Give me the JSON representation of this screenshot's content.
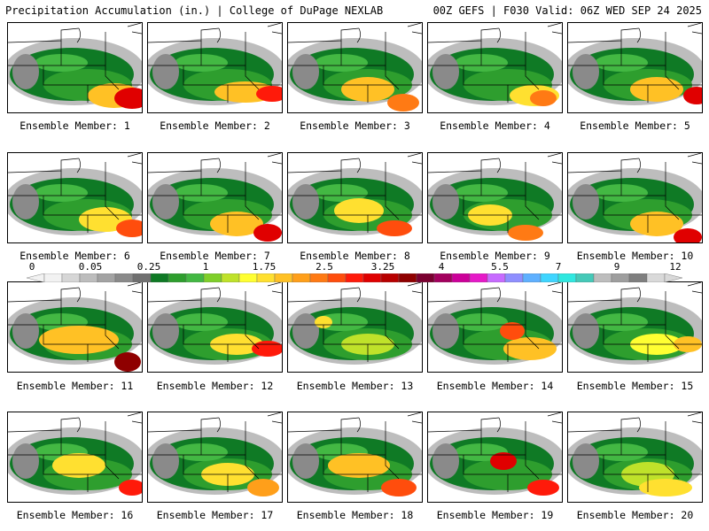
{
  "header": {
    "left_text": "Precipitation Accumulation (in.) | College of DuPage NEXLAB",
    "right_text": "00Z GEFS | F030 Valid: 06Z WED SEP 24 2025"
  },
  "colorbar": {
    "labels": [
      "0",
      "0.05",
      "0.25",
      "1",
      "1.75",
      "2.5",
      "3.25",
      "4",
      "5.5",
      "7",
      "9",
      "12"
    ],
    "colors": [
      "#f2f2f2",
      "#d6d6d6",
      "#bdbdbd",
      "#a3a3a3",
      "#8a8a8a",
      "#707070",
      "#0f7a25",
      "#2e9e2e",
      "#43b843",
      "#7fcf2a",
      "#bfe22a",
      "#ffff32",
      "#ffe030",
      "#ffc125",
      "#ff9f1a",
      "#ff7a14",
      "#ff4d0d",
      "#ff1a0a",
      "#e00000",
      "#b80000",
      "#8f0000",
      "#7a0030",
      "#a3005e",
      "#cc0099",
      "#e619c8",
      "#c76bff",
      "#8f8fff",
      "#5fb0ff",
      "#3fd5ff",
      "#2fe8e0",
      "#45c9b8",
      "#bdbdbd",
      "#9e9e9e",
      "#7f7f7f",
      "#d9d9d9"
    ]
  },
  "members": [
    {
      "label": "Ensemble Member: 1"
    },
    {
      "label": "Ensemble Member: 2"
    },
    {
      "label": "Ensemble Member: 3"
    },
    {
      "label": "Ensemble Member: 4"
    },
    {
      "label": "Ensemble Member: 5"
    },
    {
      "label": "Ensemble Member: 6"
    },
    {
      "label": "Ensemble Member: 7"
    },
    {
      "label": "Ensemble Member: 8"
    },
    {
      "label": "Ensemble Member: 9"
    },
    {
      "label": "Ensemble Member: 10"
    },
    {
      "label": "Ensemble Member: 11"
    },
    {
      "label": "Ensemble Member: 12"
    },
    {
      "label": "Ensemble Member: 13"
    },
    {
      "label": "Ensemble Member: 14"
    },
    {
      "label": "Ensemble Member: 15"
    },
    {
      "label": "Ensemble Member: 16"
    },
    {
      "label": "Ensemble Member: 17"
    },
    {
      "label": "Ensemble Member: 18"
    },
    {
      "label": "Ensemble Member: 19"
    },
    {
      "label": "Ensemble Member: 20"
    }
  ]
}
